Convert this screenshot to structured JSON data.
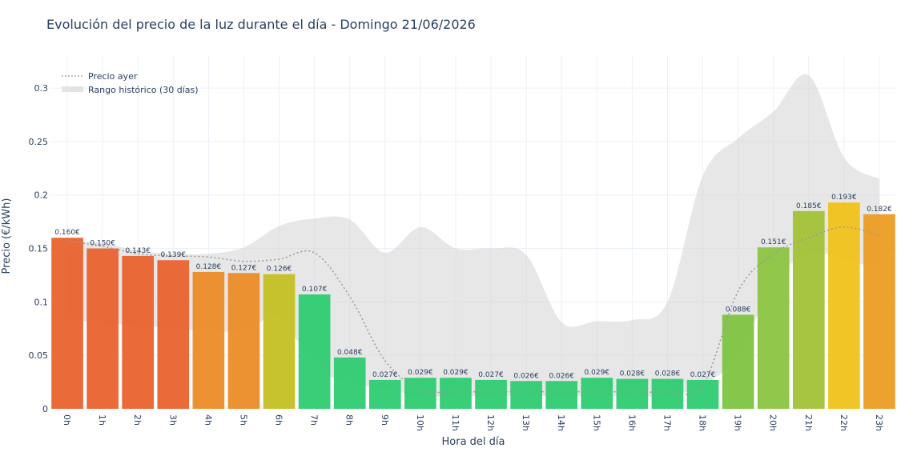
{
  "chart_data": {
    "type": "bar",
    "title": "Evolución del precio de la luz durante el día - Domingo 21/06/2026",
    "xlabel": "Hora del día",
    "ylabel": "Precio (€/kWh)",
    "ylim": [
      0,
      0.33
    ],
    "yticks": [
      0,
      0.05,
      0.1,
      0.15,
      0.2,
      0.25,
      0.3
    ],
    "ytick_labels": [
      "0",
      "0.05",
      "0.1",
      "0.15",
      "0.2",
      "0.25",
      "0.3"
    ],
    "grid": true,
    "legend_position": "top-left",
    "categories": [
      "0h",
      "1h",
      "2h",
      "3h",
      "4h",
      "5h",
      "6h",
      "7h",
      "8h",
      "9h",
      "10h",
      "11h",
      "12h",
      "13h",
      "14h",
      "15h",
      "16h",
      "17h",
      "18h",
      "19h",
      "20h",
      "21h",
      "22h",
      "23h"
    ],
    "series": [
      {
        "name": "",
        "type": "bar",
        "values": [
          0.16,
          0.15,
          0.143,
          0.139,
          0.128,
          0.127,
          0.126,
          0.107,
          0.048,
          0.027,
          0.029,
          0.029,
          0.027,
          0.026,
          0.026,
          0.029,
          0.028,
          0.028,
          0.027,
          0.088,
          0.151,
          0.185,
          0.193,
          0.182
        ],
        "data_labels": [
          "0.160€",
          "0.150€",
          "0.143€",
          "0.139€",
          "0.128€",
          "0.127€",
          "0.126€",
          "0.107€",
          "0.048€",
          "0.027€",
          "0.029€",
          "0.029€",
          "0.027€",
          "0.026€",
          "0.026€",
          "0.029€",
          "0.028€",
          "0.028€",
          "0.027€",
          "0.088€",
          "0.151€",
          "0.185€",
          "0.193€",
          "0.182€"
        ],
        "colors": [
          "#e9622e",
          "#e9622e",
          "#e9622e",
          "#e9622e",
          "#ec8c28",
          "#ec8c28",
          "#c4c024",
          "#2ecc71",
          "#2ecc71",
          "#2ecc71",
          "#2ecc71",
          "#2ecc71",
          "#2ecc71",
          "#2ecc71",
          "#2ecc71",
          "#2ecc71",
          "#2ecc71",
          "#2ecc71",
          "#2ecc71",
          "#7dc440",
          "#8bc440",
          "#a3c238",
          "#f1c21a",
          "#ec9c24"
        ]
      },
      {
        "name": "Precio ayer",
        "type": "line",
        "style": "dotted",
        "color": "#999999",
        "values": [
          0.157,
          0.152,
          0.145,
          0.143,
          0.142,
          0.138,
          0.14,
          0.146,
          0.105,
          0.045,
          0.018,
          0.016,
          0.016,
          0.016,
          0.016,
          0.016,
          0.016,
          0.016,
          0.022,
          0.11,
          0.145,
          0.16,
          0.17,
          0.162
        ]
      },
      {
        "name": "Rango histórico (30 días)",
        "type": "range",
        "color": "#d3d3d3",
        "upper": [
          0.157,
          0.155,
          0.148,
          0.145,
          0.145,
          0.151,
          0.171,
          0.178,
          0.177,
          0.146,
          0.17,
          0.15,
          0.15,
          0.144,
          0.081,
          0.082,
          0.083,
          0.1,
          0.218,
          0.253,
          0.278,
          0.312,
          0.235,
          0.215
        ],
        "lower": [
          0.084,
          0.08,
          0.078,
          0.075,
          0.073,
          0.073,
          0.085,
          0.04,
          0.024,
          0.019,
          0.012,
          0.012,
          0.012,
          0.012,
          0.012,
          0.012,
          0.012,
          0.012,
          0.022,
          0.05,
          0.118,
          0.145,
          0.14,
          0.13
        ]
      }
    ]
  }
}
